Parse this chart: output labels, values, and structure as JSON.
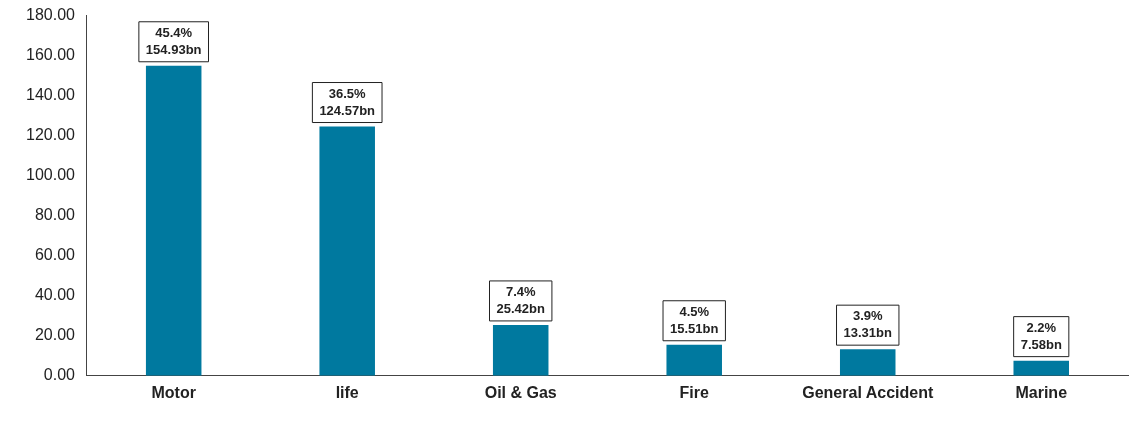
{
  "chart_data": {
    "type": "bar",
    "categories": [
      "Motor",
      "life",
      "Oil & Gas",
      "Fire",
      "General Accident",
      "Marine"
    ],
    "values": [
      154.93,
      124.57,
      25.42,
      15.51,
      13.31,
      7.58
    ],
    "color": "#00799f",
    "value_labels": [
      "154.93bn",
      "124.57bn",
      "25.42bn",
      "15.51bn",
      "13.31bn",
      "7.58bn"
    ],
    "annotations": [
      {
        "text": "45.4%",
        "x": "Motor",
        "y": 154.93
      },
      {
        "text": "36.5%",
        "x": "life",
        "y": 124.57
      },
      {
        "text": "7.4%",
        "x": "Oil & Gas",
        "y": 25.42
      },
      {
        "text": "4.5%",
        "x": "Fire",
        "y": 15.51
      },
      {
        "text": "3.9%",
        "x": "General Accident",
        "y": 13.31
      },
      {
        "text": "2.2%",
        "x": "Marine",
        "y": 7.58
      }
    ],
    "ylim": [
      0,
      180
    ],
    "yticks": [
      {
        "value": 0,
        "label": "0.00"
      },
      {
        "value": 20,
        "label": "20.00"
      },
      {
        "value": 40,
        "label": "40.00"
      },
      {
        "value": 60,
        "label": "60.00"
      },
      {
        "value": 80,
        "label": "80.00"
      },
      {
        "value": 100,
        "label": "100.00"
      },
      {
        "value": 120,
        "label": "120.00"
      },
      {
        "value": 140,
        "label": "140.00"
      },
      {
        "value": 160,
        "label": "160.00"
      },
      {
        "value": 180,
        "label": "180.00"
      }
    ],
    "grid": false,
    "legend": false
  }
}
